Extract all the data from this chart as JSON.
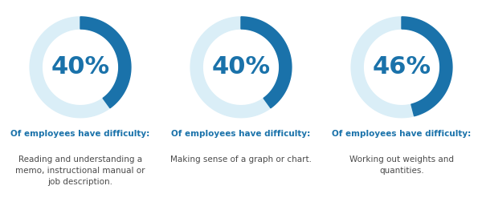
{
  "charts": [
    {
      "percentage": 40,
      "label_bold": "Of employees have difficulty:",
      "label_text": "Reading and understanding a\nmemo, instructional manual or\njob description."
    },
    {
      "percentage": 40,
      "label_bold": "Of employees have difficulty:",
      "label_text": "Making sense of a graph or chart."
    },
    {
      "percentage": 46,
      "label_bold": "Of employees have difficulty:",
      "label_text": "Working out weights and\nquantities."
    }
  ],
  "arc_color": "#1a72aa",
  "bg_arc_color": "#daeef7",
  "pct_color": "#1a72aa",
  "label_bold_color": "#1a72aa",
  "label_text_color": "#4a4a4a",
  "background_color": "#ffffff",
  "ring_outer": 1.0,
  "ring_inner": 0.76,
  "pct_fontsize": 22,
  "bold_fontsize": 7.5,
  "text_fontsize": 7.5
}
